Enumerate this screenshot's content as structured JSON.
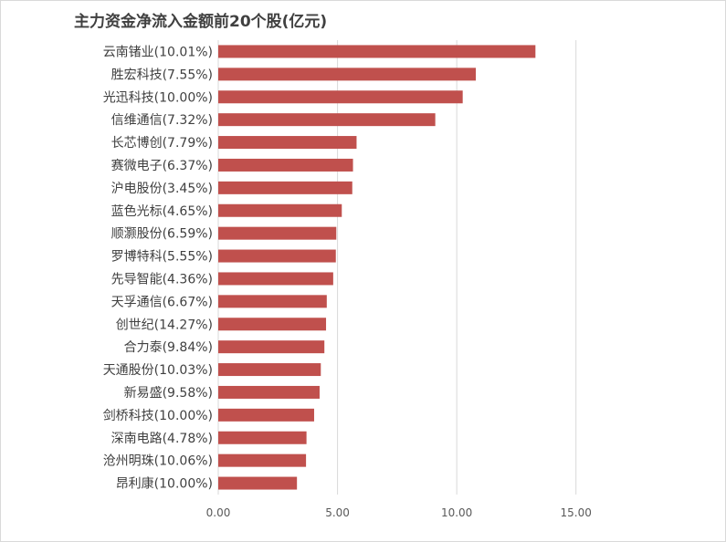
{
  "chart_data": {
    "type": "bar",
    "orientation": "horizontal",
    "title": "主力资金净流入金额前20个股(亿元)",
    "categories": [
      "云南锗业(10.01%)",
      "胜宏科技(7.55%)",
      "光迅科技(10.00%)",
      "信维通信(7.32%)",
      "长芯博创(7.79%)",
      "赛微电子(6.37%)",
      "沪电股份(3.45%)",
      "蓝色光标(4.65%)",
      "顺灏股份(6.59%)",
      "罗博特科(5.55%)",
      "先导智能(4.36%)",
      "天孚通信(6.67%)",
      "创世纪(14.27%)",
      "合力泰(9.84%)",
      "天通股份(10.03%)",
      "新易盛(9.58%)",
      "剑桥科技(10.00%)",
      "深南电路(4.78%)",
      "沧州明珠(10.06%)",
      "昂利康(10.00%)"
    ],
    "values": [
      13.3,
      10.8,
      10.25,
      9.1,
      5.8,
      5.65,
      5.62,
      5.18,
      4.95,
      4.93,
      4.82,
      4.55,
      4.52,
      4.45,
      4.3,
      4.25,
      4.02,
      3.7,
      3.68,
      3.3
    ],
    "xlim": [
      0,
      17.5
    ],
    "xticks": [
      "0.00",
      "5.00",
      "10.00",
      "15.00"
    ],
    "xtick_values": [
      0,
      5,
      10,
      15
    ],
    "grid": "vertical",
    "bar_color": "#c0504d",
    "grid_color": "#d9d9d9"
  }
}
